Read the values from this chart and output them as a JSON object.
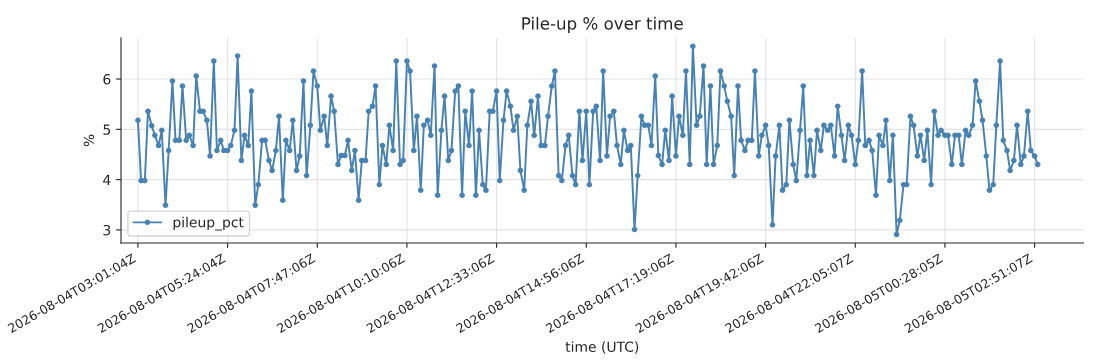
{
  "chart_data": {
    "type": "line",
    "title": "Pile-up % over time",
    "xlabel": "time (UTC)",
    "ylabel": "%",
    "xlim": [
      "2026-08-04T02:34",
      "2026-08-05T04:09"
    ],
    "ylim": [
      2.74,
      6.82
    ],
    "xticks": [
      {
        "value": "2026-08-04T03:01",
        "label": "2026-08-04T03:01:04Z"
      },
      {
        "value": "2026-08-04T05:24",
        "label": "2026-08-04T05:24:04Z"
      },
      {
        "value": "2026-08-04T07:47",
        "label": "2026-08-04T07:47:06Z"
      },
      {
        "value": "2026-08-04T10:10",
        "label": "2026-08-04T10:10:06Z"
      },
      {
        "value": "2026-08-04T12:33",
        "label": "2026-08-04T12:33:06Z"
      },
      {
        "value": "2026-08-04T14:56",
        "label": "2026-08-04T14:56:06Z"
      },
      {
        "value": "2026-08-04T17:19",
        "label": "2026-08-04T17:19:06Z"
      },
      {
        "value": "2026-08-04T19:42",
        "label": "2026-08-04T19:42:06Z"
      },
      {
        "value": "2026-08-04T22:05",
        "label": "2026-08-04T22:05:07Z"
      },
      {
        "value": "2026-08-05T00:28",
        "label": "2026-08-05T00:28:05Z"
      },
      {
        "value": "2026-08-05T02:51",
        "label": "2026-08-05T02:51:07Z"
      }
    ],
    "yticks": [
      3,
      4,
      5,
      6
    ],
    "grid": true,
    "legend": "bottom left",
    "marker": "circle",
    "line_style": "solid",
    "series": [
      {
        "name": "pileup_pct",
        "color": "#4682b4",
        "x": [
          "2026-08-04T03:01",
          "2026-08-04T03:06",
          "2026-08-04T03:12",
          "2026-08-04T03:17",
          "2026-08-04T03:23",
          "2026-08-04T03:28",
          "2026-08-04T03:34",
          "2026-08-04T03:39",
          "2026-08-04T03:45",
          "2026-08-04T03:50",
          "2026-08-04T03:56",
          "2026-08-04T04:01",
          "2026-08-04T04:07",
          "2026-08-04T04:12",
          "2026-08-04T04:18",
          "2026-08-04T04:23",
          "2026-08-04T04:29",
          "2026-08-04T04:34",
          "2026-08-04T04:40",
          "2026-08-04T04:45",
          "2026-08-04T04:51",
          "2026-08-04T04:56",
          "2026-08-04T05:02",
          "2026-08-04T05:07",
          "2026-08-04T05:13",
          "2026-08-04T05:18",
          "2026-08-04T05:24",
          "2026-08-04T05:29",
          "2026-08-04T05:35",
          "2026-08-04T05:40",
          "2026-08-04T05:46",
          "2026-08-04T05:51",
          "2026-08-04T05:57",
          "2026-08-04T06:02",
          "2026-08-04T06:08",
          "2026-08-04T06:13",
          "2026-08-04T06:19",
          "2026-08-04T06:24",
          "2026-08-04T06:30",
          "2026-08-04T06:35",
          "2026-08-04T06:41",
          "2026-08-04T06:46",
          "2026-08-04T06:52",
          "2026-08-04T06:57",
          "2026-08-04T07:03",
          "2026-08-04T07:08",
          "2026-08-04T07:14",
          "2026-08-04T07:19",
          "2026-08-04T07:25",
          "2026-08-04T07:30",
          "2026-08-04T07:36",
          "2026-08-04T07:41",
          "2026-08-04T07:47",
          "2026-08-04T07:52",
          "2026-08-04T07:58",
          "2026-08-04T08:03",
          "2026-08-04T08:09",
          "2026-08-04T08:14",
          "2026-08-04T08:20",
          "2026-08-04T08:25",
          "2026-08-04T08:31",
          "2026-08-04T08:36",
          "2026-08-04T08:42",
          "2026-08-04T08:47",
          "2026-08-04T08:53",
          "2026-08-04T08:58",
          "2026-08-04T09:04",
          "2026-08-04T09:09",
          "2026-08-04T09:15",
          "2026-08-04T09:20",
          "2026-08-04T09:26",
          "2026-08-04T09:31",
          "2026-08-04T09:37",
          "2026-08-04T09:42",
          "2026-08-04T09:48",
          "2026-08-04T09:53",
          "2026-08-04T09:59",
          "2026-08-04T10:04",
          "2026-08-04T10:10",
          "2026-08-04T10:15",
          "2026-08-04T10:21",
          "2026-08-04T10:26",
          "2026-08-04T10:32",
          "2026-08-04T10:37",
          "2026-08-04T10:43",
          "2026-08-04T10:48",
          "2026-08-04T10:54",
          "2026-08-04T10:59",
          "2026-08-04T11:05",
          "2026-08-04T11:10",
          "2026-08-04T11:16",
          "2026-08-04T11:21",
          "2026-08-04T11:27",
          "2026-08-04T11:32",
          "2026-08-04T11:38",
          "2026-08-04T11:43",
          "2026-08-04T11:49",
          "2026-08-04T11:54",
          "2026-08-04T12:00",
          "2026-08-04T12:05",
          "2026-08-04T12:11",
          "2026-08-04T12:16",
          "2026-08-04T12:22",
          "2026-08-04T12:27",
          "2026-08-04T12:33",
          "2026-08-04T12:38",
          "2026-08-04T12:44",
          "2026-08-04T12:49",
          "2026-08-04T12:55",
          "2026-08-04T13:00",
          "2026-08-04T13:06",
          "2026-08-04T13:11",
          "2026-08-04T13:17",
          "2026-08-04T13:22",
          "2026-08-04T13:28",
          "2026-08-04T13:33",
          "2026-08-04T13:39",
          "2026-08-04T13:44",
          "2026-08-04T13:50",
          "2026-08-04T13:55",
          "2026-08-04T14:01",
          "2026-08-04T14:06",
          "2026-08-04T14:12",
          "2026-08-04T14:17",
          "2026-08-04T14:23",
          "2026-08-04T14:28",
          "2026-08-04T14:34",
          "2026-08-04T14:39",
          "2026-08-04T14:45",
          "2026-08-04T14:50",
          "2026-08-04T14:56",
          "2026-08-04T15:01",
          "2026-08-04T15:07",
          "2026-08-04T15:12",
          "2026-08-04T15:18",
          "2026-08-04T15:23",
          "2026-08-04T15:29",
          "2026-08-04T15:34",
          "2026-08-04T15:40",
          "2026-08-04T15:45",
          "2026-08-04T15:51",
          "2026-08-04T15:56",
          "2026-08-04T16:02",
          "2026-08-04T16:07",
          "2026-08-04T16:13",
          "2026-08-04T16:18",
          "2026-08-04T16:24",
          "2026-08-04T16:29",
          "2026-08-04T16:35",
          "2026-08-04T16:40",
          "2026-08-04T16:46",
          "2026-08-04T16:51",
          "2026-08-04T16:57",
          "2026-08-04T17:02",
          "2026-08-04T17:08",
          "2026-08-04T17:13",
          "2026-08-04T17:19",
          "2026-08-04T17:24",
          "2026-08-04T17:30",
          "2026-08-04T17:35",
          "2026-08-04T17:41",
          "2026-08-04T17:46",
          "2026-08-04T17:52",
          "2026-08-04T17:57",
          "2026-08-04T18:03",
          "2026-08-04T18:08",
          "2026-08-04T18:14",
          "2026-08-04T18:19",
          "2026-08-04T18:25",
          "2026-08-04T18:30",
          "2026-08-04T18:36",
          "2026-08-04T18:41",
          "2026-08-04T18:47",
          "2026-08-04T18:52",
          "2026-08-04T18:58",
          "2026-08-04T19:03",
          "2026-08-04T19:09",
          "2026-08-04T19:14",
          "2026-08-04T19:20",
          "2026-08-04T19:25",
          "2026-08-04T19:31",
          "2026-08-04T19:36",
          "2026-08-04T19:42",
          "2026-08-04T19:47",
          "2026-08-04T19:53",
          "2026-08-04T19:58",
          "2026-08-04T20:04",
          "2026-08-04T20:09",
          "2026-08-04T20:15",
          "2026-08-04T20:20",
          "2026-08-04T20:26",
          "2026-08-04T20:31",
          "2026-08-04T20:37",
          "2026-08-04T20:42",
          "2026-08-04T20:48",
          "2026-08-04T20:53",
          "2026-08-04T20:59",
          "2026-08-04T21:04",
          "2026-08-04T21:10",
          "2026-08-04T21:15",
          "2026-08-04T21:21",
          "2026-08-04T21:26",
          "2026-08-04T21:32",
          "2026-08-04T21:37",
          "2026-08-04T21:43",
          "2026-08-04T21:48",
          "2026-08-04T21:54",
          "2026-08-04T21:59",
          "2026-08-04T22:05",
          "2026-08-04T22:10",
          "2026-08-04T22:16",
          "2026-08-04T22:21",
          "2026-08-04T22:27",
          "2026-08-04T22:32",
          "2026-08-04T22:38",
          "2026-08-04T22:43",
          "2026-08-04T22:49",
          "2026-08-04T22:54",
          "2026-08-04T23:00",
          "2026-08-04T23:05",
          "2026-08-04T23:11",
          "2026-08-04T23:16",
          "2026-08-04T23:22",
          "2026-08-04T23:27",
          "2026-08-04T23:33",
          "2026-08-04T23:38",
          "2026-08-04T23:44",
          "2026-08-04T23:49",
          "2026-08-04T23:55",
          "2026-08-05T00:00",
          "2026-08-05T00:06",
          "2026-08-05T00:11",
          "2026-08-05T00:17",
          "2026-08-05T00:22",
          "2026-08-05T00:28",
          "2026-08-05T00:33",
          "2026-08-05T00:39",
          "2026-08-05T00:44",
          "2026-08-05T00:50",
          "2026-08-05T00:55",
          "2026-08-05T01:01",
          "2026-08-05T01:06",
          "2026-08-05T01:12",
          "2026-08-05T01:17",
          "2026-08-05T01:23",
          "2026-08-05T01:28",
          "2026-08-05T01:34",
          "2026-08-05T01:39",
          "2026-08-05T01:45",
          "2026-08-05T01:50",
          "2026-08-05T01:56",
          "2026-08-05T02:01",
          "2026-08-05T02:07",
          "2026-08-05T02:12",
          "2026-08-05T02:18",
          "2026-08-05T02:23",
          "2026-08-05T02:29",
          "2026-08-05T02:34",
          "2026-08-05T02:40",
          "2026-08-05T02:45",
          "2026-08-05T02:51",
          "2026-08-05T02:56"
        ],
        "values": [
          5.18,
          3.98,
          3.98,
          5.36,
          5.07,
          4.88,
          4.68,
          4.98,
          3.49,
          4.58,
          5.96,
          4.78,
          4.78,
          5.86,
          4.78,
          4.88,
          4.68,
          6.06,
          5.36,
          5.36,
          5.18,
          4.47,
          6.36,
          4.58,
          4.78,
          4.58,
          4.58,
          4.68,
          4.98,
          6.46,
          4.38,
          4.88,
          4.68,
          5.76,
          3.49,
          3.9,
          4.78,
          4.78,
          4.38,
          4.18,
          4.58,
          5.26,
          3.59,
          4.78,
          4.58,
          5.18,
          4.18,
          4.47,
          5.96,
          4.08,
          5.08,
          6.16,
          5.86,
          4.98,
          5.26,
          4.68,
          5.66,
          5.36,
          4.3,
          4.48,
          4.48,
          4.78,
          4.18,
          4.58,
          3.59,
          4.38,
          4.38,
          5.36,
          5.46,
          5.86,
          3.9,
          4.68,
          4.3,
          5.08,
          4.58,
          6.36,
          4.3,
          4.38,
          6.36,
          6.16,
          4.58,
          5.26,
          3.79,
          5.08,
          5.18,
          4.88,
          6.26,
          3.69,
          4.98,
          5.66,
          4.38,
          4.58,
          5.76,
          5.86,
          3.69,
          5.36,
          4.68,
          5.76,
          3.69,
          4.98,
          3.9,
          3.79,
          5.36,
          5.36,
          5.76,
          3.98,
          5.18,
          5.76,
          5.46,
          4.98,
          5.26,
          4.18,
          3.79,
          5.08,
          5.56,
          4.88,
          5.66,
          4.68,
          4.68,
          5.26,
          5.86,
          6.16,
          4.08,
          3.98,
          4.68,
          4.88,
          4.08,
          3.9,
          5.36,
          4.38,
          5.36,
          3.9,
          5.36,
          5.46,
          4.38,
          6.16,
          4.47,
          5.26,
          5.36,
          4.68,
          4.3,
          4.98,
          4.58,
          4.68,
          3.01,
          4.08,
          5.26,
          5.08,
          5.08,
          4.68,
          6.06,
          4.48,
          4.3,
          4.98,
          4.38,
          5.66,
          4.47,
          5.26,
          4.88,
          6.16,
          4.3,
          6.65,
          5.08,
          5.26,
          6.26,
          4.3,
          5.86,
          4.3,
          4.68,
          6.16,
          5.86,
          5.56,
          5.26,
          4.08,
          5.86,
          4.78,
          4.58,
          4.78,
          4.78,
          6.16,
          4.47,
          4.88,
          5.08,
          4.68,
          3.1,
          4.47,
          5.08,
          3.79,
          3.9,
          5.18,
          4.3,
          3.98,
          4.98,
          5.86,
          4.08,
          4.78,
          4.08,
          4.98,
          4.58,
          5.08,
          4.98,
          5.08,
          4.47,
          5.46,
          4.88,
          4.38,
          5.08,
          4.88,
          4.3,
          4.78,
          6.16,
          4.68,
          4.78,
          4.58,
          3.69,
          4.88,
          4.68,
          5.18,
          3.98,
          4.88,
          2.91,
          3.19,
          3.9,
          3.9,
          5.26,
          5.08,
          4.47,
          4.88,
          4.38,
          4.98,
          3.9,
          5.36,
          4.88,
          4.98,
          4.88,
          4.88,
          4.3,
          4.88,
          4.88,
          4.3,
          4.98,
          4.88,
          5.08,
          5.96,
          5.56,
          5.18,
          4.47,
          3.79,
          3.9,
          5.08,
          6.36,
          4.78,
          4.58,
          4.18,
          4.38,
          5.08,
          4.3,
          4.47,
          5.36,
          4.58,
          4.47,
          4.3
        ]
      }
    ]
  }
}
